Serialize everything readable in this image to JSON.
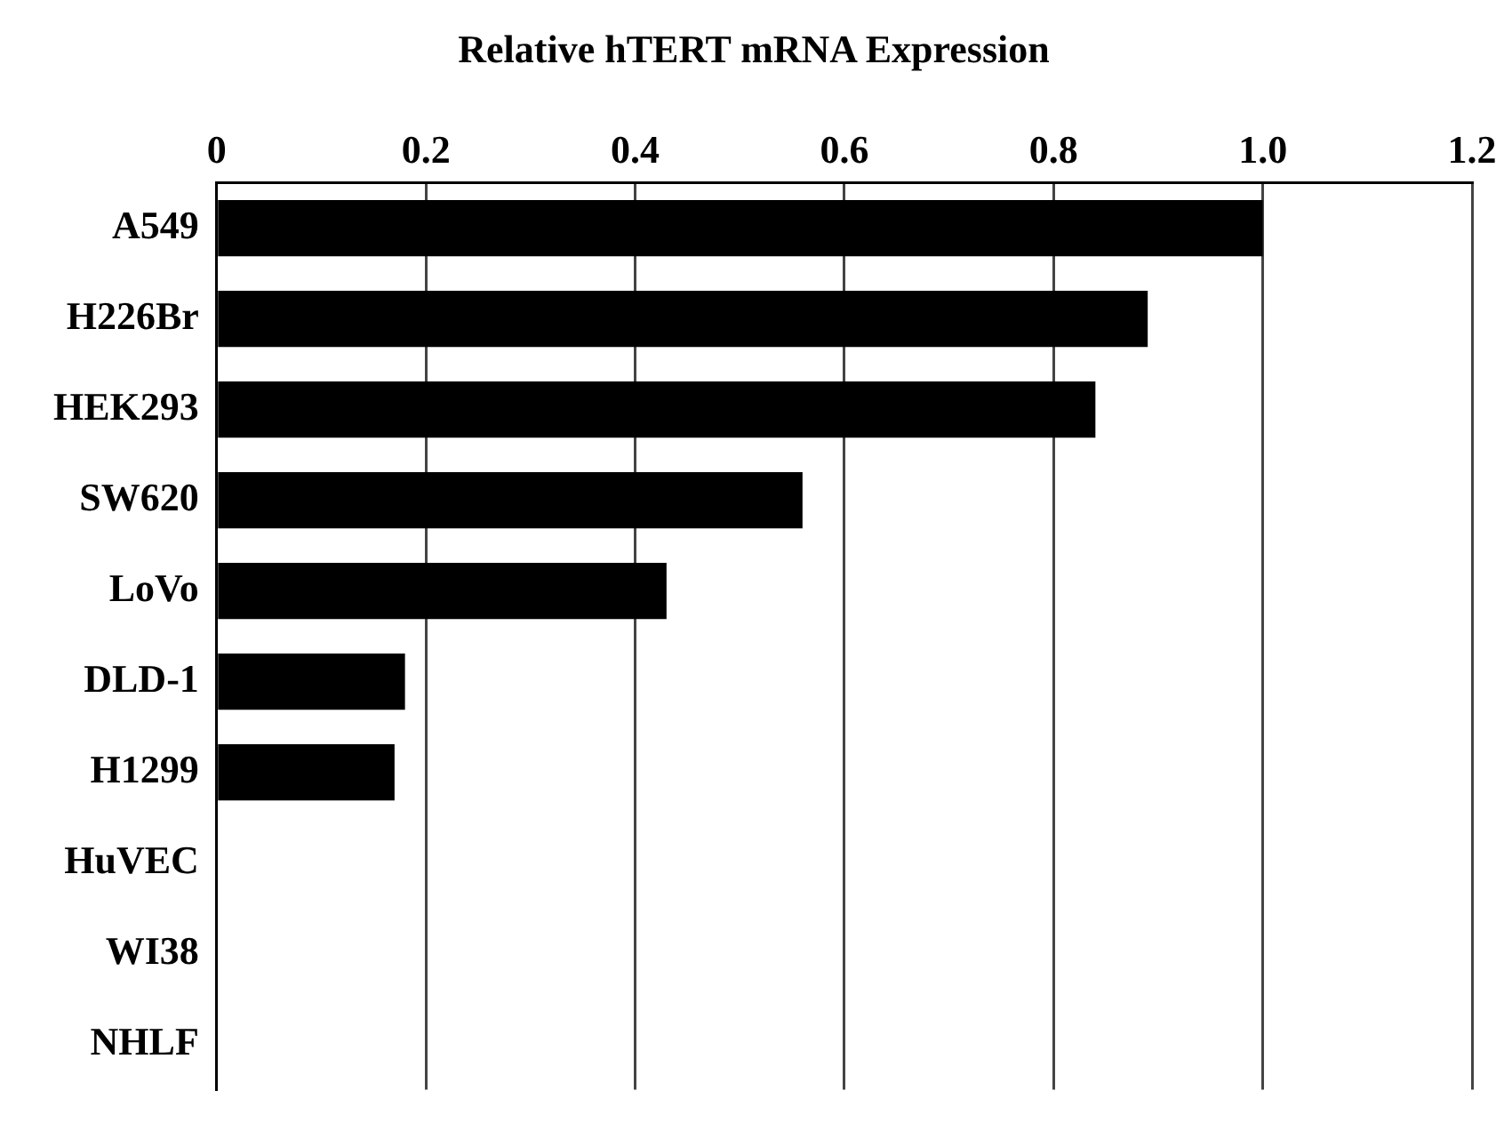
{
  "chart_data": {
    "type": "bar",
    "orientation": "horizontal",
    "title": "Relative hTERT mRNA Expression",
    "categories": [
      "A549",
      "H226Br",
      "HEK293",
      "SW620",
      "LoVo",
      "DLD-1",
      "H1299",
      "HuVEC",
      "WI38",
      "NHLF"
    ],
    "values": [
      1.0,
      0.89,
      0.84,
      0.56,
      0.43,
      0.18,
      0.17,
      0,
      0,
      0
    ],
    "color": "#000000",
    "xlim": [
      0,
      1.2
    ],
    "xticks": [
      0,
      {
        "value": 0.2,
        "label": "0.2"
      },
      {
        "value": 0.4,
        "label": "0.4"
      },
      {
        "value": 0.6,
        "label": "0.6"
      },
      {
        "value": 0.8,
        "label": "0.8"
      },
      {
        "value": 1.0,
        "label": "1.0"
      },
      {
        "value": 1.2,
        "label": "1.2"
      }
    ],
    "grid": "x",
    "legend": false
  }
}
